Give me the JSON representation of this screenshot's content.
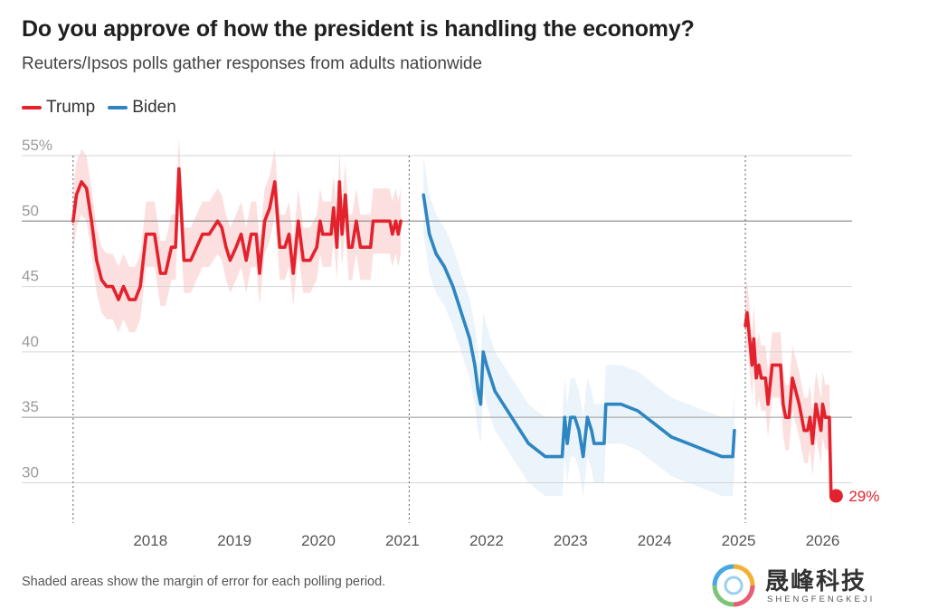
{
  "title": "Do you approve of how the president is handling the economy?",
  "subtitle": "Reuters/Ipsos polls gather responses from adults nationwide",
  "footnote": "Shaded areas show the margin of error for each polling period.",
  "watermark": {
    "cn": "晟峰科技",
    "en": "SHENGFENGKEJI"
  },
  "chart_data": {
    "type": "line",
    "title": "Do you approve of how the president is handling the economy?",
    "subtitle": "Reuters/Ipsos polls gather responses from adults nationwide",
    "xlabel": "",
    "ylabel": "",
    "xlim": [
      2017.05,
      2026.35
    ],
    "ylim": [
      27,
      56
    ],
    "y_ticks": [
      {
        "value": 55,
        "label": "55%"
      },
      {
        "value": 50,
        "label": "50"
      },
      {
        "value": 45,
        "label": "45"
      },
      {
        "value": 40,
        "label": "40"
      },
      {
        "value": 35,
        "label": "35"
      },
      {
        "value": 30,
        "label": "30"
      }
    ],
    "x_ticks": [
      {
        "value": 2018,
        "label": "2018"
      },
      {
        "value": 2019,
        "label": "2019"
      },
      {
        "value": 2020,
        "label": "2020"
      },
      {
        "value": 2021,
        "label": "2021"
      },
      {
        "value": 2022,
        "label": "2022"
      },
      {
        "value": 2023,
        "label": "2023"
      },
      {
        "value": 2024,
        "label": "2024"
      },
      {
        "value": 2025,
        "label": "2025"
      },
      {
        "value": 2026,
        "label": "2026"
      }
    ],
    "vertical_markers": [
      2017.08,
      2021.08,
      2025.08
    ],
    "grid": true,
    "legend_position": "top-left",
    "annotation": {
      "label": "29%",
      "x": 2026.16,
      "y": 29
    },
    "series": [
      {
        "name": "Trump",
        "color": "#e3222d",
        "band_color": "#fbdada",
        "margin": 2.5,
        "points": [
          [
            2017.08,
            50
          ],
          [
            2017.12,
            52
          ],
          [
            2017.18,
            53
          ],
          [
            2017.24,
            52.5
          ],
          [
            2017.3,
            50
          ],
          [
            2017.36,
            47
          ],
          [
            2017.42,
            45.5
          ],
          [
            2017.48,
            45
          ],
          [
            2017.55,
            45
          ],
          [
            2017.62,
            44
          ],
          [
            2017.68,
            45
          ],
          [
            2017.75,
            44
          ],
          [
            2017.82,
            44
          ],
          [
            2017.88,
            45
          ],
          [
            2017.95,
            49
          ],
          [
            2018.05,
            49
          ],
          [
            2018.12,
            46
          ],
          [
            2018.18,
            46
          ],
          [
            2018.25,
            48
          ],
          [
            2018.3,
            48
          ],
          [
            2018.34,
            54
          ],
          [
            2018.4,
            47
          ],
          [
            2018.48,
            47
          ],
          [
            2018.55,
            48
          ],
          [
            2018.62,
            49
          ],
          [
            2018.7,
            49
          ],
          [
            2018.8,
            50
          ],
          [
            2018.85,
            49.5
          ],
          [
            2018.9,
            48
          ],
          [
            2018.95,
            47
          ],
          [
            2019.02,
            48
          ],
          [
            2019.08,
            49
          ],
          [
            2019.14,
            47
          ],
          [
            2019.2,
            49
          ],
          [
            2019.26,
            49
          ],
          [
            2019.3,
            46
          ],
          [
            2019.36,
            50
          ],
          [
            2019.42,
            51
          ],
          [
            2019.48,
            53
          ],
          [
            2019.54,
            48
          ],
          [
            2019.6,
            48
          ],
          [
            2019.65,
            49
          ],
          [
            2019.7,
            46
          ],
          [
            2019.76,
            50
          ],
          [
            2019.82,
            47
          ],
          [
            2019.9,
            47
          ],
          [
            2019.98,
            48
          ],
          [
            2020.02,
            50
          ],
          [
            2020.05,
            49
          ],
          [
            2020.1,
            49
          ],
          [
            2020.15,
            49
          ],
          [
            2020.18,
            51
          ],
          [
            2020.22,
            48
          ],
          [
            2020.25,
            53
          ],
          [
            2020.28,
            49
          ],
          [
            2020.32,
            52
          ],
          [
            2020.36,
            48
          ],
          [
            2020.4,
            48
          ],
          [
            2020.45,
            50
          ],
          [
            2020.5,
            48
          ],
          [
            2020.55,
            48
          ],
          [
            2020.62,
            48
          ],
          [
            2020.65,
            50
          ],
          [
            2020.85,
            50
          ],
          [
            2020.88,
            49
          ],
          [
            2020.92,
            50
          ],
          [
            2020.95,
            49
          ],
          [
            2020.98,
            50
          ]
        ]
      },
      {
        "name": "Biden",
        "color": "#2e86c1",
        "band_color": "#e7f1fa",
        "margin": 3,
        "points": [
          [
            2021.25,
            52
          ],
          [
            2021.32,
            49
          ],
          [
            2021.4,
            47.5
          ],
          [
            2021.5,
            46.5
          ],
          [
            2021.6,
            45
          ],
          [
            2021.7,
            43
          ],
          [
            2021.8,
            41
          ],
          [
            2021.86,
            39
          ],
          [
            2021.9,
            37
          ],
          [
            2021.93,
            36
          ],
          [
            2021.96,
            40
          ],
          [
            2022.0,
            39
          ],
          [
            2022.1,
            37
          ],
          [
            2022.3,
            35
          ],
          [
            2022.5,
            33
          ],
          [
            2022.7,
            32
          ],
          [
            2022.9,
            32
          ],
          [
            2022.93,
            35
          ],
          [
            2022.96,
            33
          ],
          [
            2023.0,
            35
          ],
          [
            2023.05,
            35
          ],
          [
            2023.1,
            34
          ],
          [
            2023.15,
            32
          ],
          [
            2023.2,
            35
          ],
          [
            2023.25,
            34
          ],
          [
            2023.28,
            33
          ],
          [
            2023.4,
            33
          ],
          [
            2023.42,
            36
          ],
          [
            2023.6,
            36
          ],
          [
            2023.8,
            35.5
          ],
          [
            2024.0,
            34.5
          ],
          [
            2024.2,
            33.5
          ],
          [
            2024.4,
            33
          ],
          [
            2024.6,
            32.5
          ],
          [
            2024.8,
            32
          ],
          [
            2024.93,
            32
          ],
          [
            2024.95,
            34
          ]
        ]
      },
      {
        "name": "Trump",
        "color": "#e3222d",
        "band_color": "#fbdada",
        "margin": 2.5,
        "points": [
          [
            2025.08,
            42
          ],
          [
            2025.1,
            43
          ],
          [
            2025.13,
            41
          ],
          [
            2025.16,
            39
          ],
          [
            2025.18,
            41
          ],
          [
            2025.21,
            38
          ],
          [
            2025.24,
            39
          ],
          [
            2025.27,
            38
          ],
          [
            2025.32,
            38
          ],
          [
            2025.35,
            36
          ],
          [
            2025.4,
            39
          ],
          [
            2025.5,
            39
          ],
          [
            2025.53,
            36
          ],
          [
            2025.56,
            35
          ],
          [
            2025.6,
            35
          ],
          [
            2025.64,
            38
          ],
          [
            2025.68,
            37
          ],
          [
            2025.72,
            36
          ],
          [
            2025.75,
            35
          ],
          [
            2025.78,
            34
          ],
          [
            2025.82,
            34
          ],
          [
            2025.85,
            35
          ],
          [
            2025.88,
            33
          ],
          [
            2025.92,
            36
          ],
          [
            2025.95,
            35
          ],
          [
            2025.98,
            34
          ],
          [
            2026.0,
            36
          ],
          [
            2026.03,
            35
          ],
          [
            2026.08,
            35
          ],
          [
            2026.1,
            29
          ]
        ]
      }
    ]
  }
}
